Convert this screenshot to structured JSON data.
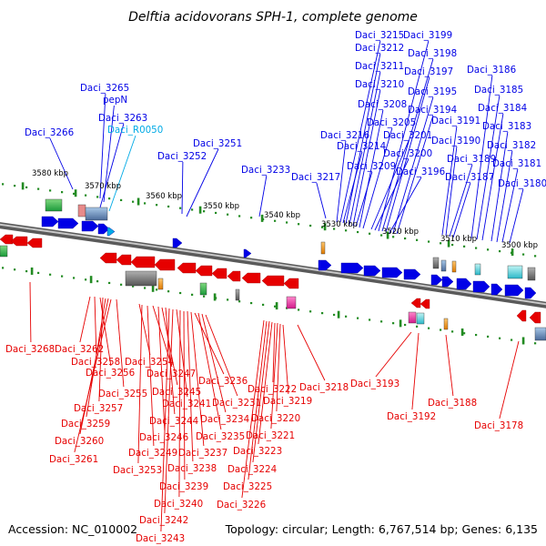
{
  "title": "Delftia acidovorans SPH-1, complete genome",
  "footer": {
    "accession": "Accession: NC_010002",
    "topology": "Topology: circular; Length: 6,767,514 bp; Genes: 6,135"
  },
  "colors": {
    "forward_gene": "#0000e6",
    "reverse_gene": "#e60000",
    "rna_gene": "#00aae6",
    "tick": "#228b22",
    "backbone": "#777777"
  },
  "scale_labels": [
    "3580 kbp",
    "3570 kbp",
    "3560 kbp",
    "3550 kbp",
    "3540 kbp",
    "3530 kbp",
    "3520 kbp",
    "3510 kbp",
    "3500 kbp"
  ],
  "forward_labels": [
    {
      "text": "Daci_3266",
      "type": "cds"
    },
    {
      "text": "Daci_3265",
      "type": "cds"
    },
    {
      "text": "pepN",
      "type": "cds"
    },
    {
      "text": "Daci_3263",
      "type": "cds"
    },
    {
      "text": "Daci_R0050",
      "type": "rna"
    },
    {
      "text": "Daci_3252",
      "type": "cds"
    },
    {
      "text": "Daci_3251",
      "type": "cds"
    },
    {
      "text": "Daci_3233",
      "type": "cds"
    },
    {
      "text": "Daci_3217",
      "type": "cds"
    },
    {
      "text": "Daci_3216",
      "type": "cds"
    },
    {
      "text": "Daci_3215",
      "type": "cds"
    },
    {
      "text": "Daci_3214",
      "type": "cds"
    },
    {
      "text": "Daci_3212",
      "type": "cds"
    },
    {
      "text": "Daci_3211",
      "type": "cds"
    },
    {
      "text": "Daci_3210",
      "type": "cds"
    },
    {
      "text": "Daci_3209",
      "type": "cds"
    },
    {
      "text": "Daci_3208",
      "type": "cds"
    },
    {
      "text": "Daci_3205",
      "type": "cds"
    },
    {
      "text": "Daci_3201",
      "type": "cds"
    },
    {
      "text": "Daci_3200",
      "type": "cds"
    },
    {
      "text": "Daci_3199",
      "type": "cds"
    },
    {
      "text": "Daci_3198",
      "type": "cds"
    },
    {
      "text": "Daci_3197",
      "type": "cds"
    },
    {
      "text": "Daci_3196",
      "type": "cds"
    },
    {
      "text": "Daci_3195",
      "type": "cds"
    },
    {
      "text": "Daci_3194",
      "type": "cds"
    },
    {
      "text": "Daci_3191",
      "type": "cds"
    },
    {
      "text": "Daci_3190",
      "type": "cds"
    },
    {
      "text": "Daci_3189",
      "type": "cds"
    },
    {
      "text": "Daci_3187",
      "type": "cds"
    },
    {
      "text": "Daci_3186",
      "type": "cds"
    },
    {
      "text": "Daci_3185",
      "type": "cds"
    },
    {
      "text": "Daci_3184",
      "type": "cds"
    },
    {
      "text": "Daci_3183",
      "type": "cds"
    },
    {
      "text": "Daci_3182",
      "type": "cds"
    },
    {
      "text": "Daci_3181",
      "type": "cds"
    },
    {
      "text": "Daci_3180",
      "type": "cds"
    }
  ],
  "reverse_labels": [
    "Daci_3268",
    "Daci_3262",
    "Daci_3258",
    "Daci_3256",
    "Daci_3257",
    "Daci_3259",
    "Daci_3260",
    "Daci_3261",
    "Daci_3255",
    "Daci_3254",
    "Daci_3253",
    "Daci_3249",
    "Daci_3247",
    "Daci_3246",
    "Daci_3245",
    "Daci_3244",
    "Daci_3243",
    "Daci_3242",
    "Daci_3241",
    "Daci_3240",
    "Daci_3239",
    "Daci_3238",
    "Daci_3237",
    "Daci_3236",
    "Daci_3235",
    "Daci_3234",
    "Daci_3231",
    "Daci_3226",
    "Daci_3225",
    "Daci_3224",
    "Daci_3223",
    "Daci_3222",
    "Daci_3221",
    "Daci_3220",
    "Daci_3219",
    "Daci_3218",
    "Daci_3193",
    "Daci_3192",
    "Daci_3188",
    "Daci_3178"
  ]
}
